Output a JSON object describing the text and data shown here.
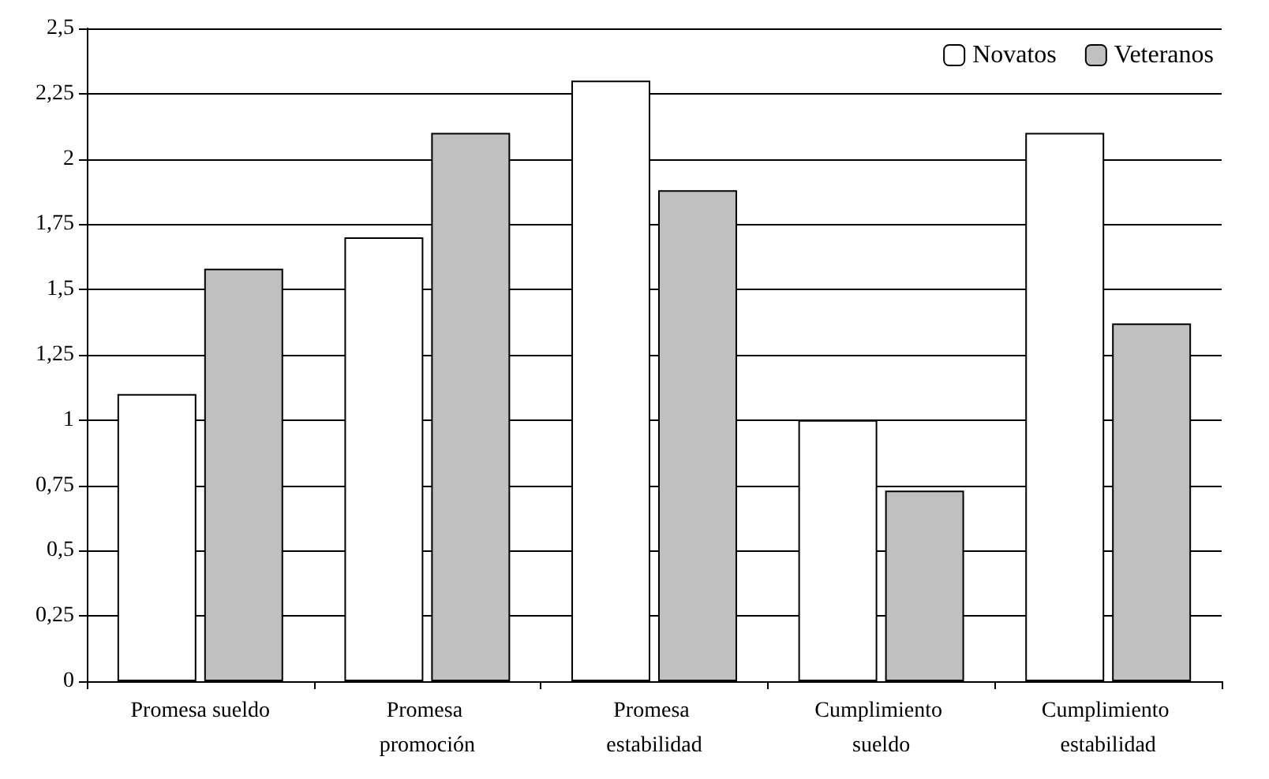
{
  "chart_data": {
    "type": "bar",
    "categories": [
      "Promesa sueldo",
      "Promesa promoción",
      "Promesa estabilidad",
      "Cumplimiento sueldo",
      "Cumplimiento estabilidad"
    ],
    "series": [
      {
        "name": "Novatos",
        "color": "#ffffff",
        "values": [
          1.1,
          1.7,
          2.3,
          1.0,
          2.1
        ]
      },
      {
        "name": "Veteranos",
        "color": "#c0c0c0",
        "values": [
          1.58,
          2.1,
          1.88,
          0.73,
          1.37
        ]
      }
    ],
    "ylim": [
      0,
      2.5
    ],
    "yticks": [
      0,
      {
        "value": 0.25,
        "label": "0,25"
      },
      {
        "value": 0.5,
        "label": "0,5"
      },
      {
        "value": 0.75,
        "label": "0,75"
      },
      1,
      {
        "value": 1.25,
        "label": "1,25"
      },
      {
        "value": 1.5,
        "label": "1,5"
      },
      {
        "value": 1.75,
        "label": "1,75"
      },
      2,
      {
        "value": 2.25,
        "label": "2,25"
      },
      {
        "value": 2.5,
        "label": "2,5"
      }
    ],
    "grid": "y",
    "legend": "top right"
  }
}
